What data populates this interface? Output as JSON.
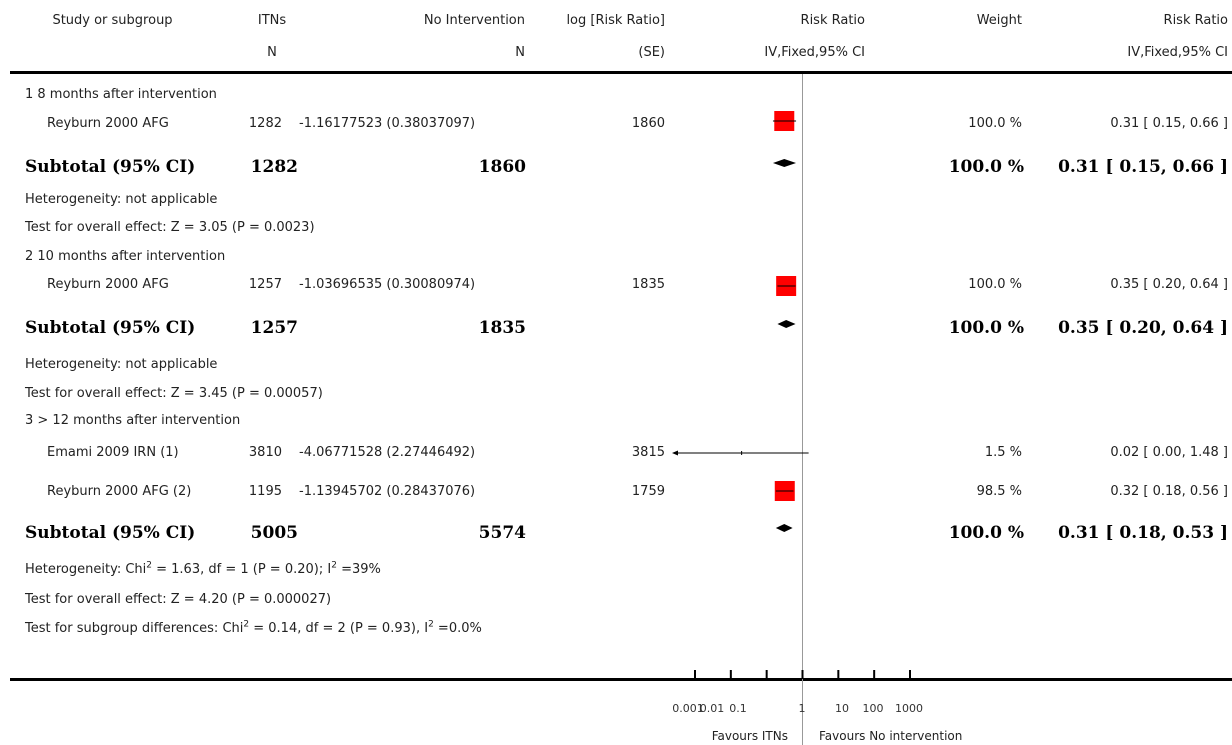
{
  "headers": {
    "study": "Study or subgroup",
    "itns": "ITNs",
    "itns_sub": "N",
    "noint": "No Intervention",
    "noint_sub": "N",
    "logrr": "log [Risk Ratio]",
    "logrr_sub": "(SE)",
    "rr_plot": "Risk Ratio",
    "rr_plot_sub": "IV,Fixed,95% CI",
    "weight": "Weight",
    "rr": "Risk Ratio",
    "rr_sub": "IV,Fixed,95% CI"
  },
  "groups": [
    {
      "title": "1 8 months after intervention",
      "studies": [
        {
          "name": "Reyburn 2000 AFG",
          "itns": "1282",
          "logrr": "-1.16177523 (0.38037097)",
          "noint": "1860",
          "weight": "100.0 %",
          "ci": "0.31 [ 0.15, 0.66 ]"
        }
      ],
      "subtotal": {
        "label": "Subtotal (95% CI)",
        "itns": "1282",
        "noint": "1860",
        "weight": "100.0 %",
        "ci": "0.31 [ 0.15, 0.66 ]"
      },
      "heterogeneity": "Heterogeneity: not applicable",
      "overall": "Test for overall effect: Z = 3.05 (P = 0.0023)"
    },
    {
      "title": "2 10 months after intervention",
      "studies": [
        {
          "name": "Reyburn 2000 AFG",
          "itns": "1257",
          "logrr": "-1.03696535 (0.30080974)",
          "noint": "1835",
          "weight": "100.0 %",
          "ci": "0.35 [ 0.20, 0.64 ]"
        }
      ],
      "subtotal": {
        "label": "Subtotal (95% CI)",
        "itns": "1257",
        "noint": "1835",
        "weight": "100.0 %",
        "ci": "0.35 [ 0.20, 0.64 ]"
      },
      "heterogeneity": "Heterogeneity: not applicable",
      "overall": "Test for overall effect: Z = 3.45 (P = 0.00057)"
    },
    {
      "title": "3 > 12 months after intervention",
      "studies": [
        {
          "name": "Emami 2009 IRN (1)",
          "itns": "3810",
          "logrr": "-4.06771528 (2.27446492)",
          "noint": "3815",
          "weight": "1.5 %",
          "ci": "0.02 [ 0.00, 1.48 ]"
        },
        {
          "name": "Reyburn 2000 AFG (2)",
          "itns": "1195",
          "logrr": "-1.13945702 (0.28437076)",
          "noint": "1759",
          "weight": "98.5 %",
          "ci": "0.32 [ 0.18, 0.56 ]"
        }
      ],
      "subtotal": {
        "label": "Subtotal (95% CI)",
        "itns": "5005",
        "noint": "5574",
        "weight": "100.0 %",
        "ci": "0.31 [ 0.18, 0.53 ]"
      },
      "heterogeneity_parts": [
        "Heterogeneity: Chi",
        "2",
        " = 1.63, df = 1 (P = 0.20); I",
        "2",
        " =39%"
      ],
      "overall": "Test for overall effect: Z = 4.20 (P = 0.000027)"
    }
  ],
  "subgroup_diff_parts": [
    "Test for subgroup differences: Chi",
    "2",
    " = 0.14, df = 2 (P = 0.93), I",
    "2",
    " =0.0%"
  ],
  "axis": {
    "ticks": [
      "0.001",
      "0.01",
      "0.1",
      "1",
      "10",
      "100",
      "1000"
    ],
    "favours_left": "Favours ITNs",
    "favours_right": "Favours No intervention"
  },
  "colors": {
    "box": "#ff0000",
    "line": "#000000",
    "null_line": "#999999"
  },
  "chart_data": {
    "type": "forest",
    "scale": "log",
    "xlim": [
      0.001,
      1000
    ],
    "reference": 1,
    "rows": [
      {
        "kind": "study",
        "group": 1,
        "rr": 0.31,
        "lo": 0.15,
        "hi": 0.66,
        "weight": 100.0
      },
      {
        "kind": "subtotal",
        "group": 1,
        "rr": 0.31,
        "lo": 0.15,
        "hi": 0.66
      },
      {
        "kind": "study",
        "group": 2,
        "rr": 0.35,
        "lo": 0.2,
        "hi": 0.64,
        "weight": 100.0
      },
      {
        "kind": "subtotal",
        "group": 2,
        "rr": 0.35,
        "lo": 0.2,
        "hi": 0.64
      },
      {
        "kind": "study",
        "group": 3,
        "rr": 0.02,
        "lo": 0.0,
        "hi": 1.48,
        "weight": 1.5
      },
      {
        "kind": "study",
        "group": 3,
        "rr": 0.32,
        "lo": 0.18,
        "hi": 0.56,
        "weight": 98.5
      },
      {
        "kind": "subtotal",
        "group": 3,
        "rr": 0.31,
        "lo": 0.18,
        "hi": 0.53
      }
    ]
  }
}
